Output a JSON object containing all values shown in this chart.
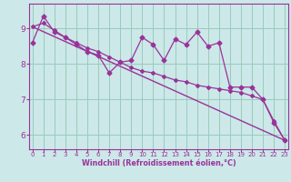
{
  "xlabel": "Windchill (Refroidissement éolien,°C)",
  "bg_color": "#cce8e8",
  "line_color": "#993399",
  "grid_color": "#99ccbb",
  "x_ticks": [
    0,
    1,
    2,
    3,
    4,
    5,
    6,
    7,
    8,
    9,
    10,
    11,
    12,
    13,
    14,
    15,
    16,
    17,
    18,
    19,
    20,
    21,
    22,
    23
  ],
  "y_ticks": [
    6,
    7,
    8,
    9
  ],
  "xlim": [
    -0.3,
    23.3
  ],
  "ylim": [
    5.6,
    9.7
  ],
  "series1_x": [
    0,
    1,
    2,
    3,
    4,
    5,
    6,
    7,
    8,
    9,
    10,
    11,
    12,
    13,
    14,
    15,
    16,
    17,
    18,
    19,
    20,
    21,
    22,
    23
  ],
  "series1_y": [
    8.6,
    9.35,
    8.9,
    8.75,
    8.55,
    8.35,
    8.25,
    7.75,
    8.05,
    8.1,
    8.75,
    8.55,
    8.1,
    8.7,
    8.55,
    8.9,
    8.5,
    8.6,
    7.35,
    7.35,
    7.35,
    7.0,
    6.35,
    5.85
  ],
  "series2_x": [
    0,
    1,
    2,
    3,
    4,
    5,
    6,
    7,
    8,
    9,
    10,
    11,
    12,
    13,
    14,
    15,
    16,
    17,
    18,
    19,
    20,
    21,
    22,
    23
  ],
  "series2_y": [
    9.05,
    9.15,
    8.95,
    8.75,
    8.6,
    8.45,
    8.35,
    8.2,
    8.05,
    7.9,
    7.8,
    7.75,
    7.65,
    7.55,
    7.5,
    7.4,
    7.35,
    7.3,
    7.25,
    7.2,
    7.1,
    7.0,
    6.4,
    5.85
  ],
  "series3_x": [
    0,
    23
  ],
  "series3_y": [
    9.05,
    5.85
  ]
}
